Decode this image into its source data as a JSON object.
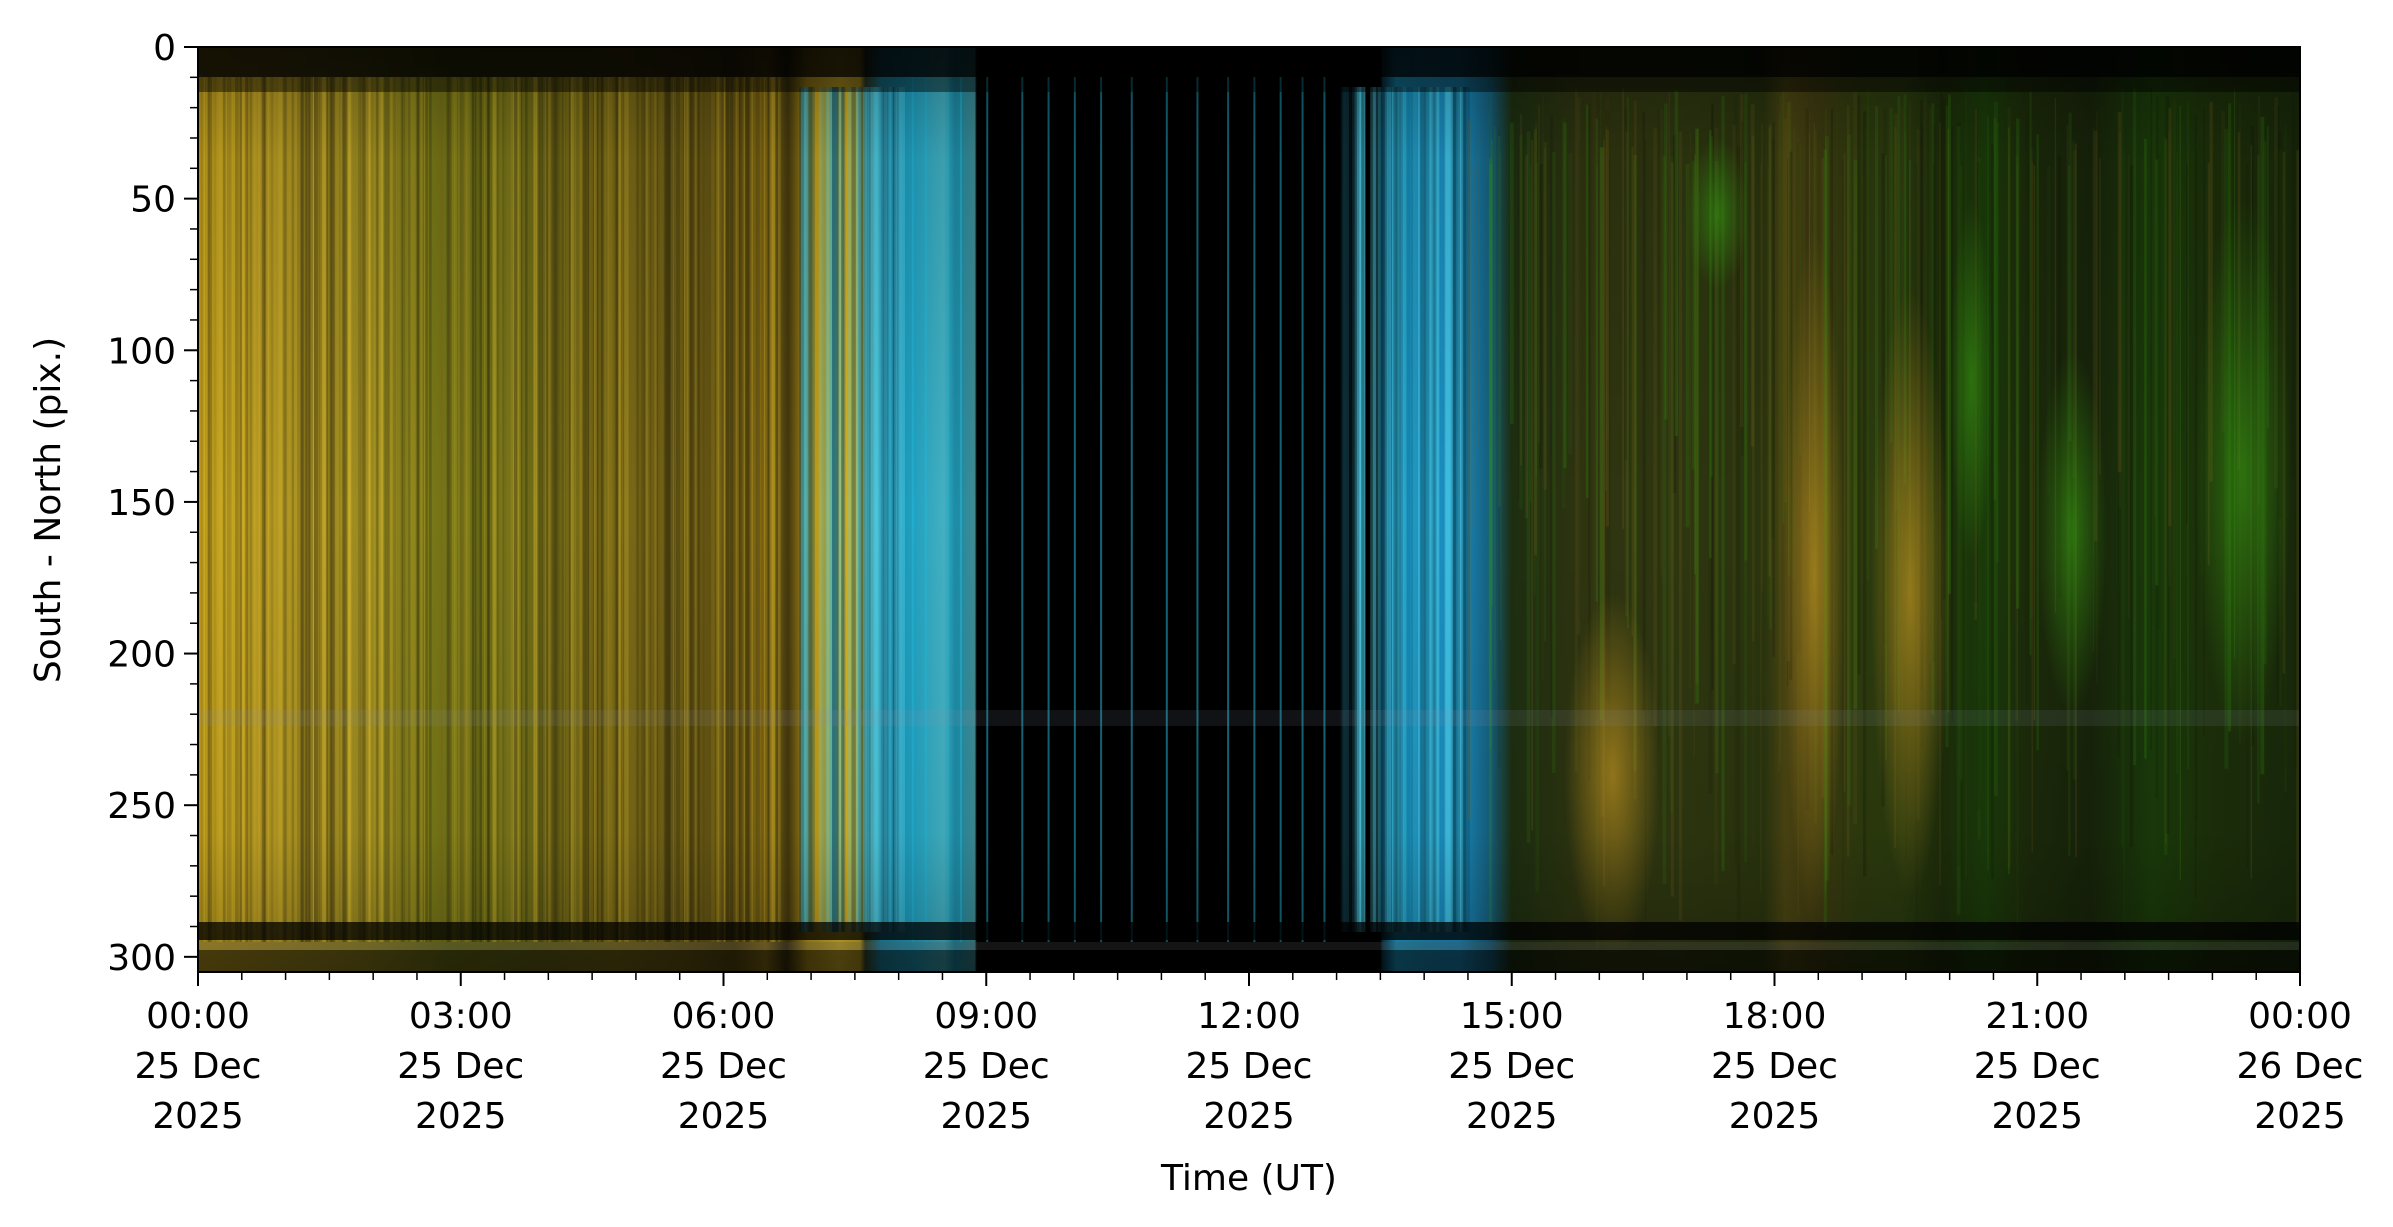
{
  "chart_data": {
    "type": "heatmap",
    "title": "",
    "xlabel": "Time (UT)",
    "ylabel": "South - North (pix.)",
    "x_range_hours": [
      0,
      24
    ],
    "ylim": [
      305,
      0
    ],
    "y_inverted": true,
    "grid": false,
    "x_ticks": [
      {
        "hour": 0,
        "time": "00:00",
        "day": "25 Dec",
        "year": "2025"
      },
      {
        "hour": 3,
        "time": "03:00",
        "day": "25 Dec",
        "year": "2025"
      },
      {
        "hour": 6,
        "time": "06:00",
        "day": "25 Dec",
        "year": "2025"
      },
      {
        "hour": 9,
        "time": "09:00",
        "day": "25 Dec",
        "year": "2025"
      },
      {
        "hour": 12,
        "time": "12:00",
        "day": "25 Dec",
        "year": "2025"
      },
      {
        "hour": 15,
        "time": "15:00",
        "day": "25 Dec",
        "year": "2025"
      },
      {
        "hour": 18,
        "time": "18:00",
        "day": "25 Dec",
        "year": "2025"
      },
      {
        "hour": 21,
        "time": "21:00",
        "day": "25 Dec",
        "year": "2025"
      },
      {
        "hour": 24,
        "time": "00:00",
        "day": "26 Dec",
        "year": "2025"
      }
    ],
    "y_ticks": [
      0,
      50,
      100,
      150,
      200,
      250,
      300
    ],
    "colors": {
      "twilight_yellow": "#c9a820",
      "daylight_cyan": "#22b8d8",
      "aurora_green": "#3f8a12",
      "night_dark": "#141a08",
      "black": "#000000"
    },
    "regions": [
      {
        "name": "twilight-yellow",
        "start_hour": 0.0,
        "end_hour": 6.75
      },
      {
        "name": "dawn-cyan",
        "start_hour": 6.75,
        "end_hour": 8.0
      },
      {
        "name": "daylight-black",
        "start_hour": 8.0,
        "end_hour": 13.0
      },
      {
        "name": "dusk-cyan",
        "start_hour": 13.0,
        "end_hour": 14.5
      },
      {
        "name": "night-aurora",
        "start_hour": 14.5,
        "end_hour": 24.0
      }
    ]
  }
}
